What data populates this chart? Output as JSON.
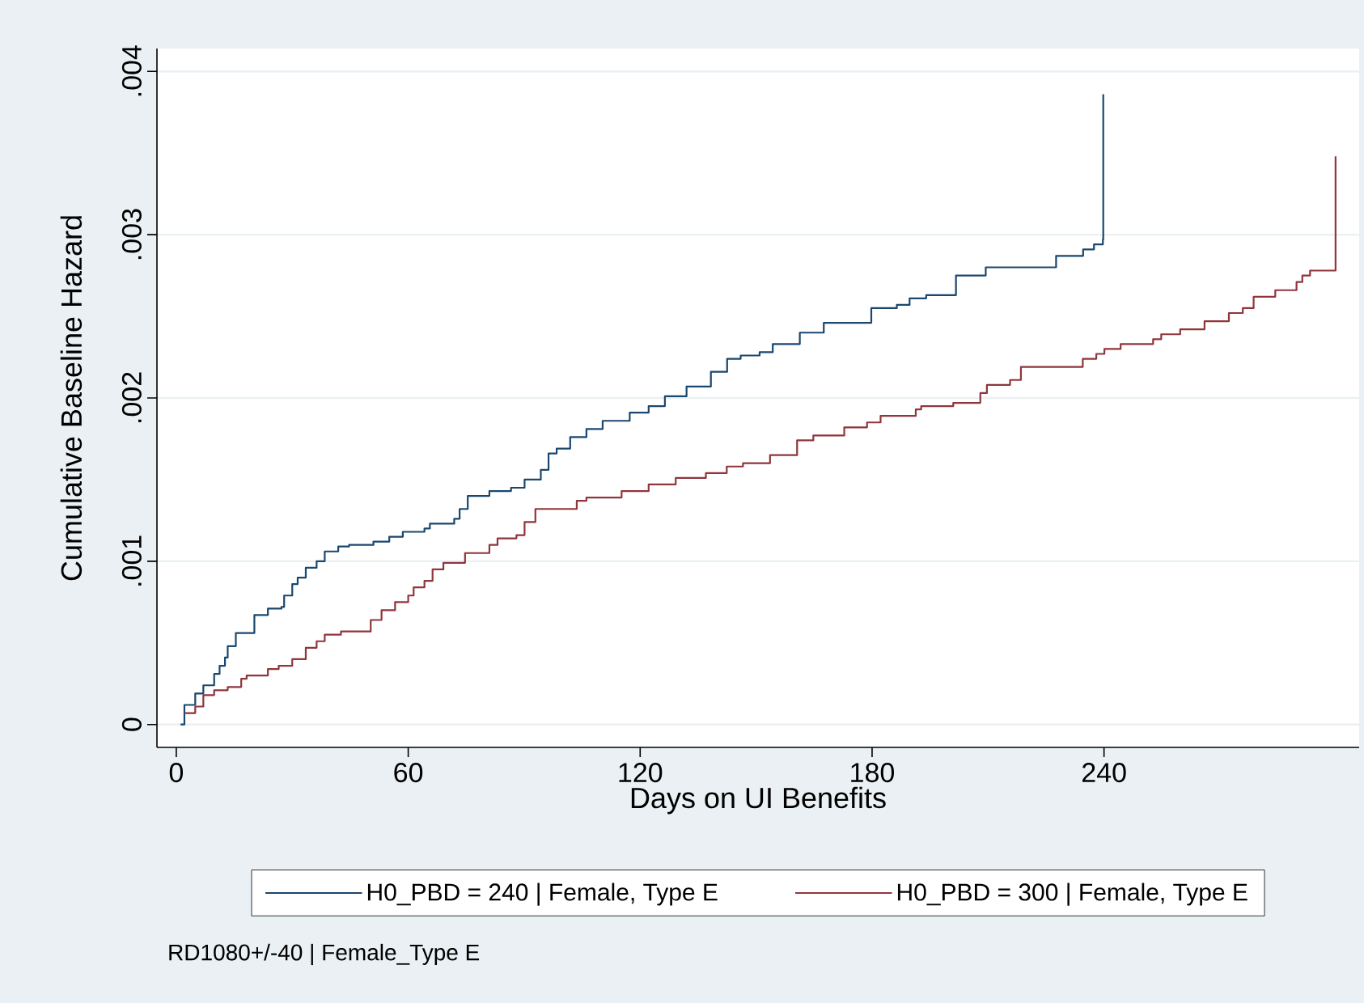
{
  "chart_data": {
    "type": "step",
    "xlabel": "Days on UI Benefits",
    "ylabel": "Cumulative Baseline Hazard",
    "xlim": [
      -5,
      306
    ],
    "ylim": [
      -0.00014,
      0.00414
    ],
    "xticks": [
      0,
      60,
      120,
      180,
      240
    ],
    "yticks": [
      0,
      {
        "value": 0.001,
        "label": ".001"
      },
      {
        "value": 0.002,
        "label": ".002"
      },
      {
        "value": 0.003,
        "label": ".003"
      },
      {
        "value": 0.004,
        "label": ".004"
      }
    ],
    "grid": "y",
    "legend": "bottom",
    "annotations": [
      "RD1080+/-40 | Female_Type E"
    ],
    "series": [
      {
        "name": "H0_PBD = 240 | Female, Type E",
        "color": "#1a476f",
        "x": [
          1.1,
          2.1,
          4.9,
          7.0,
          9.8,
          11.2,
          12.6,
          13.3,
          15.4,
          20.2,
          23.7,
          27.2,
          27.9,
          30.0,
          31.4,
          33.5,
          36.3,
          38.4,
          41.9,
          44.7,
          51.0,
          55.1,
          58.6,
          64.2,
          65.6,
          71.9,
          73.3,
          75.4,
          81.0,
          86.6,
          90.1,
          94.3,
          96.3,
          98.4,
          101.9,
          106.1,
          110.3,
          117.3,
          122.2,
          126.4,
          132.0,
          138.3,
          142.5,
          146.0,
          150.9,
          154.3,
          161.3,
          167.5,
          179.8,
          186.4,
          189.7,
          194.0,
          201.7,
          209.4,
          227.6,
          234.6,
          237.4,
          239.7,
          239.8
        ],
        "values": [
          0,
          0.00012,
          0.00019,
          0.00024,
          0.00031,
          0.00036,
          0.00041,
          0.00048,
          0.00056,
          0.00067,
          0.00071,
          0.00072,
          0.00079,
          0.00086,
          0.0009,
          0.00096,
          0.001,
          0.00106,
          0.00109,
          0.0011,
          0.00112,
          0.00115,
          0.00118,
          0.0012,
          0.00123,
          0.00126,
          0.00132,
          0.0014,
          0.00143,
          0.00145,
          0.0015,
          0.00156,
          0.00166,
          0.00169,
          0.00176,
          0.00181,
          0.00186,
          0.00191,
          0.00195,
          0.00201,
          0.00207,
          0.00216,
          0.00224,
          0.00226,
          0.00228,
          0.00233,
          0.0024,
          0.00246,
          0.00255,
          0.00257,
          0.00261,
          0.00263,
          0.00275,
          0.0028,
          0.00287,
          0.00291,
          0.00294,
          0.00297,
          0.00386
        ]
      },
      {
        "name": "H0_PBD = 300 | Female, Type E",
        "color": "#90353b",
        "x": [
          2.1,
          4.9,
          7.0,
          9.8,
          13.3,
          16.8,
          18.2,
          23.7,
          26.5,
          30.0,
          33.5,
          36.3,
          38.4,
          42.6,
          50.3,
          53.1,
          56.6,
          60.0,
          61.4,
          64.2,
          66.3,
          69.1,
          74.7,
          81.0,
          83.1,
          88.0,
          90.1,
          92.9,
          103.6,
          106.1,
          115.2,
          122.2,
          129.2,
          137.0,
          142.4,
          146.6,
          153.6,
          160.6,
          164.8,
          172.8,
          178.7,
          182.2,
          191.3,
          192.7,
          201.0,
          208.0,
          209.7,
          215.7,
          218.5,
          234.5,
          238.0,
          240.1,
          244.3,
          252.7,
          254.8,
          259.7,
          266.0,
          272.3,
          275.9,
          278.7,
          284.3,
          289.8,
          291.3,
          293.3,
          299.9
        ],
        "values": [
          7e-05,
          0.00011,
          0.00018,
          0.00021,
          0.00023,
          0.00028,
          0.0003,
          0.00034,
          0.00036,
          0.0004,
          0.00047,
          0.00051,
          0.00055,
          0.00057,
          0.00064,
          0.0007,
          0.00075,
          0.00079,
          0.00084,
          0.00088,
          0.00095,
          0.00099,
          0.00105,
          0.0011,
          0.00114,
          0.00116,
          0.00124,
          0.00132,
          0.00137,
          0.00139,
          0.00143,
          0.00147,
          0.00151,
          0.00154,
          0.00158,
          0.0016,
          0.00165,
          0.00174,
          0.00177,
          0.00182,
          0.00185,
          0.00189,
          0.00193,
          0.00195,
          0.00197,
          0.00203,
          0.00208,
          0.00211,
          0.00219,
          0.00224,
          0.00227,
          0.0023,
          0.00233,
          0.00236,
          0.00239,
          0.00242,
          0.00247,
          0.00252,
          0.00255,
          0.00262,
          0.00266,
          0.00271,
          0.00275,
          0.00278,
          0.00348
        ]
      }
    ]
  }
}
